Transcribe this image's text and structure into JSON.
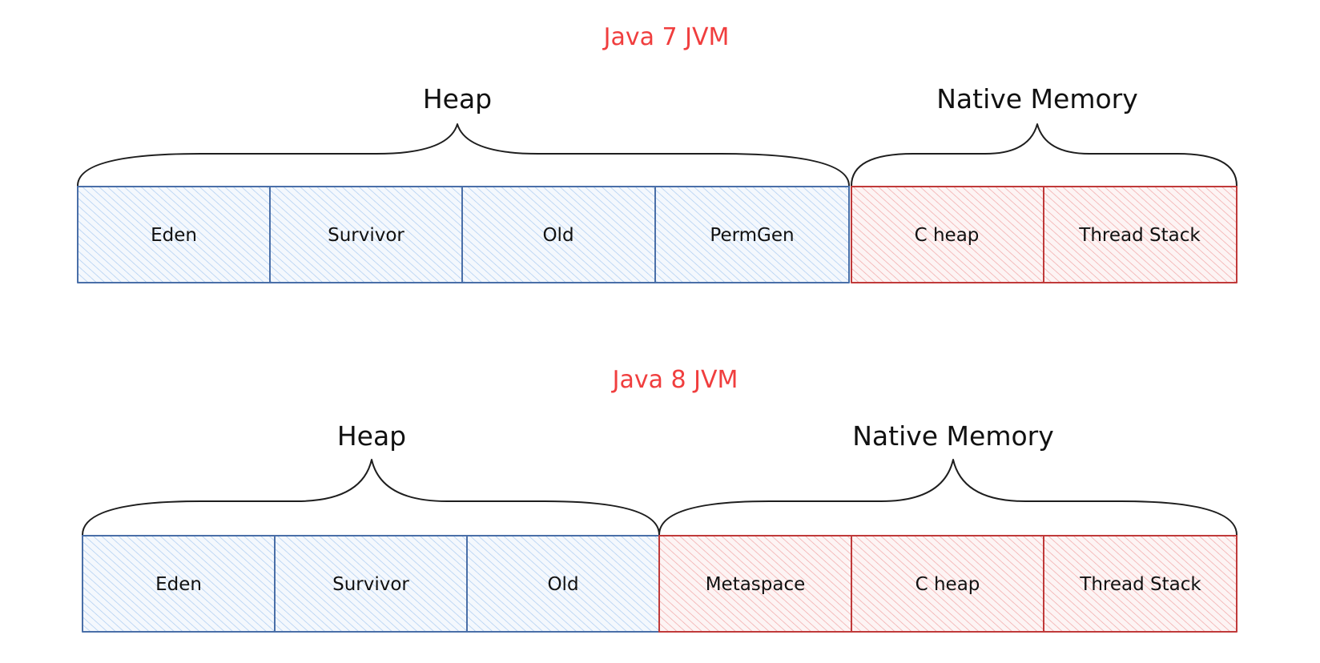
{
  "colors": {
    "title": "#f03e3e",
    "heap_stroke": "#4a6fa8",
    "heap_fill": "#a5c8f0",
    "native_stroke": "#c03a3a",
    "native_fill": "#f0a0a0",
    "text": "#111111"
  },
  "java7": {
    "title": "Java 7 JVM",
    "heap": {
      "label": "Heap",
      "cells": [
        "Eden",
        "Survivor",
        "Old",
        "PermGen"
      ]
    },
    "native": {
      "label": "Native Memory",
      "cells": [
        "C heap",
        "Thread Stack"
      ]
    }
  },
  "java8": {
    "title": "Java 8 JVM",
    "heap": {
      "label": "Heap",
      "cells": [
        "Eden",
        "Survivor",
        "Old"
      ]
    },
    "native": {
      "label": "Native Memory",
      "cells": [
        "Metaspace",
        "C heap",
        "Thread Stack"
      ]
    }
  }
}
